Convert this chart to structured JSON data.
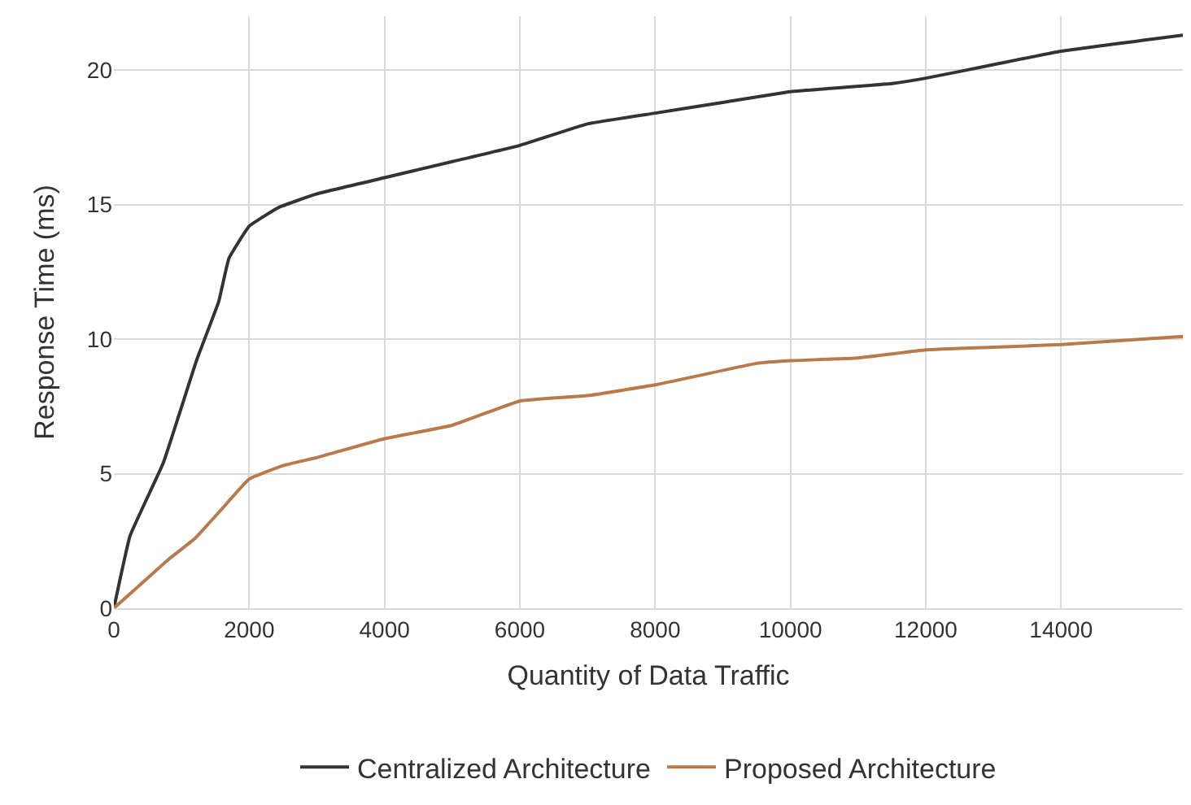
{
  "chart_data": {
    "type": "line",
    "xlabel": "Quantity of Data Traffic",
    "ylabel": "Response Time (ms)",
    "xlim": [
      0,
      15800
    ],
    "xticks": [
      0,
      2000,
      4000,
      6000,
      8000,
      10000,
      12000,
      14000
    ],
    "ylim": [
      0,
      22
    ],
    "yticks": [
      0,
      5,
      10,
      15,
      20
    ],
    "grid": true,
    "legend": "bottom",
    "marker": "none",
    "line_style": "solid",
    "series": [
      {
        "name": "Centralized Architecture",
        "color": "#333333",
        "x": [
          0,
          240,
          730,
          1220,
          1550,
          1700,
          2000,
          2440,
          3000,
          4000,
          5000,
          6000,
          7000,
          8000,
          9000,
          10000,
          11500,
          12000,
          13000,
          14000,
          15800
        ],
        "values": [
          0,
          2.7,
          5.4,
          9.2,
          11.4,
          13.0,
          14.2,
          14.9,
          15.4,
          16.0,
          16.6,
          17.2,
          18.0,
          18.4,
          18.8,
          19.2,
          19.5,
          19.7,
          20.2,
          20.7,
          21.3
        ]
      },
      {
        "name": "Proposed Architecture",
        "color": "#b87a4b",
        "x": [
          0,
          400,
          800,
          1200,
          1600,
          2000,
          2500,
          3000,
          4000,
          5000,
          6000,
          7000,
          8000,
          9500,
          10000,
          11000,
          12000,
          13000,
          14000,
          15800
        ],
        "values": [
          0,
          0.9,
          1.8,
          2.6,
          3.7,
          4.8,
          5.3,
          5.6,
          6.3,
          6.8,
          7.7,
          7.9,
          8.3,
          9.1,
          9.2,
          9.3,
          9.6,
          9.7,
          9.8,
          10.1
        ]
      }
    ]
  }
}
